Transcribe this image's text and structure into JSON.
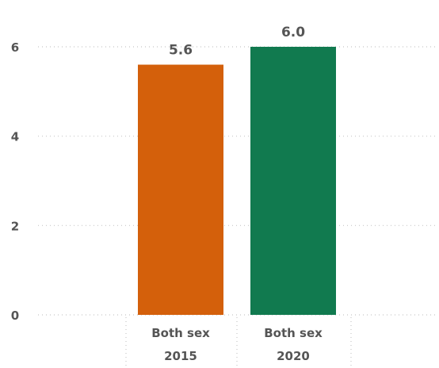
{
  "chart_data": {
    "type": "bar",
    "categories": [
      [
        "Both sex",
        "2015"
      ],
      [
        "Both sex",
        "2020"
      ]
    ],
    "values": [
      5.6,
      6.0
    ],
    "data_labels": [
      "5.6",
      "6.0"
    ],
    "bar_colors": [
      "#d4600b",
      "#117a4f"
    ],
    "y_ticks": [
      0,
      2,
      4,
      6
    ],
    "ylim": [
      0,
      6.3
    ],
    "grid": true,
    "title": "",
    "xlabel": "",
    "ylabel": ""
  }
}
